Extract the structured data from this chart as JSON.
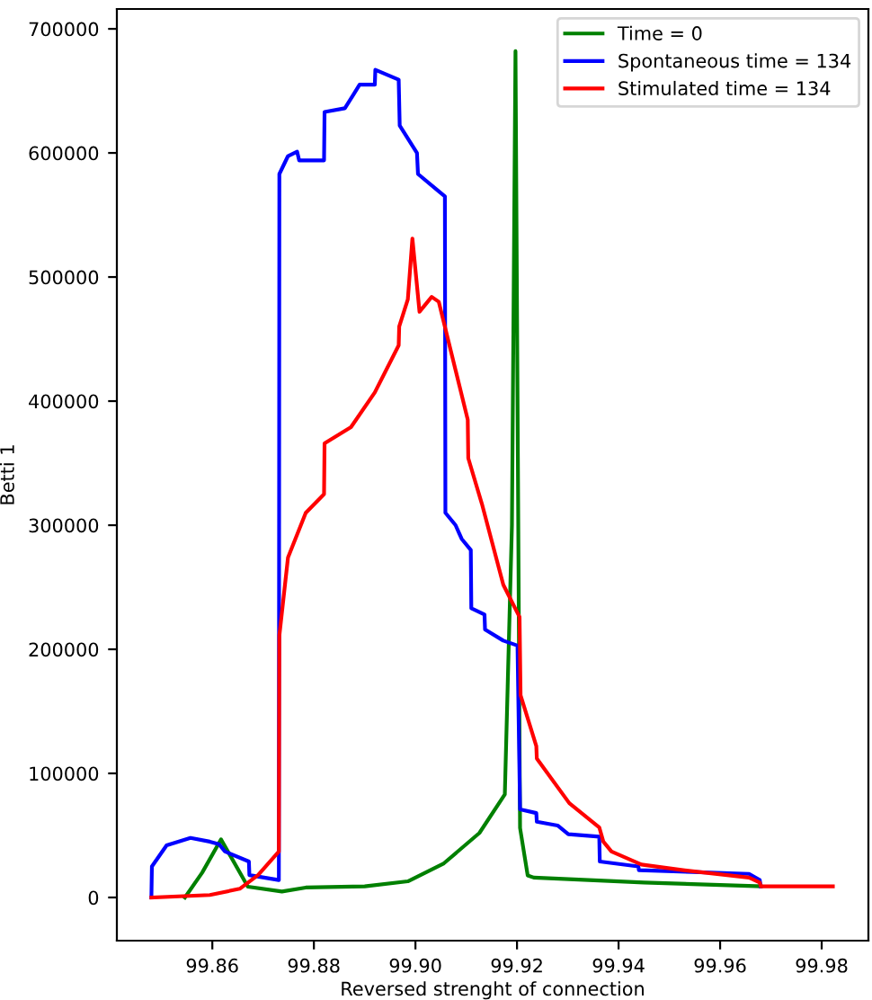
{
  "chart_data": {
    "type": "line",
    "xlabel": "Reversed strenght of connection",
    "ylabel": "Betti 1",
    "xlim": [
      99.8412,
      99.9892
    ],
    "ylim": [
      -34800,
      716000
    ],
    "xticks": [
      99.86,
      99.88,
      {
        "value": 99.9,
        "label": "99.90"
      },
      99.92,
      99.94,
      99.96,
      99.98
    ],
    "yticks": [
      0,
      100000,
      200000,
      300000,
      400000,
      500000,
      600000,
      700000
    ],
    "legend": "top right",
    "grid": false,
    "line_style": "solid",
    "marker": "none",
    "series": [
      {
        "name": "Time = 0",
        "color": "#008000",
        "x": [
          99.8546,
          99.858,
          99.8617,
          99.867,
          99.8737,
          99.8784,
          99.89,
          99.8985,
          99.9056,
          99.9126,
          99.9176,
          99.919,
          99.9197,
          99.9206,
          99.9221,
          99.9233,
          99.945,
          99.968
        ],
        "values": [
          0,
          20000,
          46800,
          8700,
          4800,
          8000,
          9000,
          13000,
          27500,
          52000,
          83000,
          300000,
          682000,
          56000,
          17800,
          16000,
          12000,
          9000
        ]
      },
      {
        "name": "Spontaneous time = 134",
        "color": "#0000ff",
        "x": [
          99.848,
          99.8481,
          99.851,
          99.8557,
          99.8595,
          99.8613,
          99.8625,
          99.8672,
          99.8673,
          99.8731,
          99.8732,
          99.8749,
          99.8767,
          99.8771,
          99.882,
          99.8821,
          99.8861,
          99.8878,
          99.889,
          99.892,
          99.8921,
          99.8967,
          99.8969,
          99.9003,
          99.9005,
          99.9043,
          99.9058,
          99.9059,
          99.9079,
          99.9091,
          99.9109,
          99.911,
          99.9136,
          99.9137,
          99.9173,
          99.9201,
          99.9206,
          99.9238,
          99.9239,
          99.928,
          99.9301,
          99.9362,
          99.9363,
          99.9439,
          99.944,
          99.9657,
          99.9678,
          99.968
        ],
        "values": [
          0,
          25000,
          42000,
          48000,
          45000,
          43000,
          37000,
          29000,
          18000,
          14000,
          583000,
          597500,
          601000,
          594000,
          594000,
          633000,
          636000,
          647000,
          655000,
          655000,
          667000,
          659000,
          622000,
          600000,
          583000,
          570000,
          565000,
          310000,
          300000,
          289000,
          280000,
          233000,
          228000,
          216000,
          207000,
          203000,
          71000,
          68000,
          61000,
          58000,
          51000,
          49000,
          29000,
          25000,
          22000,
          19000,
          14000,
          9000
        ]
      },
      {
        "name": "Stimulated time = 134",
        "color": "#ff0000",
        "x": [
          99.848,
          99.8595,
          99.8654,
          99.869,
          99.8731,
          99.8732,
          99.8749,
          99.8784,
          99.882,
          99.8821,
          99.8873,
          99.892,
          99.8967,
          99.8968,
          99.8985,
          99.8994,
          99.9008,
          99.9032,
          99.9046,
          99.9103,
          99.9104,
          99.9131,
          99.9173,
          99.9205,
          99.9207,
          99.9238,
          99.9239,
          99.9303,
          99.9362,
          99.937,
          99.9386,
          99.9445,
          99.9527,
          99.9657,
          99.9678,
          99.968,
          99.9822
        ],
        "values": [
          0,
          2000,
          7000,
          18000,
          37000,
          211000,
          274000,
          310000,
          325000,
          366000,
          379000,
          407000,
          445000,
          460000,
          482000,
          531000,
          472000,
          484000,
          480000,
          385000,
          354000,
          317000,
          252000,
          226000,
          163000,
          122000,
          112000,
          76000,
          56500,
          45000,
          37000,
          26500,
          22000,
          16000,
          12000,
          9000,
          9000
        ]
      }
    ]
  }
}
